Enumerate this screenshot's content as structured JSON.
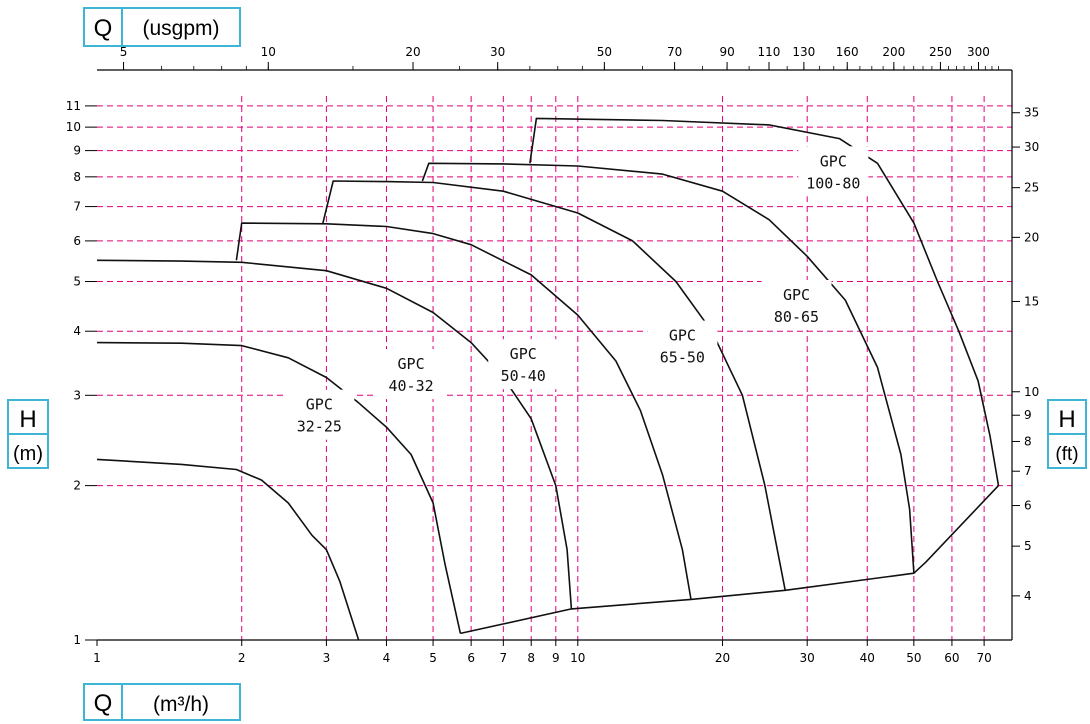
{
  "chart_data": {
    "type": "line",
    "x_scale": "log",
    "y_scale": "log",
    "xlim": [
      1,
      80
    ],
    "ylim": [
      1,
      11.5
    ],
    "grid": true,
    "grid_color": "#e0007a",
    "curve_color": "#111111",
    "box_color": "#3fb5d6",
    "x_ticks": [
      1,
      2,
      3,
      4,
      5,
      6,
      7,
      8,
      9,
      10,
      20,
      30,
      40,
      50,
      60,
      70
    ],
    "y_ticks": [
      1,
      2,
      3,
      4,
      5,
      6,
      7,
      8,
      9,
      10,
      11
    ],
    "top_axis": {
      "label_code": "Q",
      "unit": "(usgpm)",
      "ticks": [
        5,
        10,
        20,
        30,
        50,
        70,
        90,
        110,
        130,
        160,
        200,
        250,
        300
      ],
      "factor": 4.4029
    },
    "right_axis": {
      "label_code": "H",
      "unit": "(ft)",
      "ticks": [
        4,
        5,
        6,
        7,
        8,
        9,
        10,
        15,
        20,
        25,
        30,
        35
      ],
      "factor": 3.2808
    },
    "left_axis_label": {
      "code": "H",
      "unit": "(m)"
    },
    "bottom_axis_label": {
      "code": "Q",
      "unit": "(m³/h)"
    },
    "series": [
      {
        "name": "GPC 32-25",
        "label_lines": [
          "GPC",
          "32-25"
        ],
        "label_at": [
          2.9,
          2.75
        ],
        "points": [
          [
            1,
            2.25
          ],
          [
            1.5,
            2.2
          ],
          [
            1.95,
            2.15
          ],
          [
            2.2,
            2.05
          ],
          [
            2.5,
            1.85
          ],
          [
            2.8,
            1.6
          ],
          [
            3.0,
            1.5
          ],
          [
            3.2,
            1.3
          ],
          [
            3.5,
            1.0
          ]
        ]
      },
      {
        "name": "GPC 40-32",
        "label_lines": [
          "GPC",
          "40-32"
        ],
        "label_at": [
          4.5,
          3.3
        ],
        "points": [
          [
            1,
            3.8
          ],
          [
            1.5,
            3.79
          ],
          [
            2.0,
            3.75
          ],
          [
            2.5,
            3.55
          ],
          [
            3.0,
            3.25
          ],
          [
            3.5,
            2.9
          ],
          [
            4.0,
            2.6
          ],
          [
            4.5,
            2.3
          ],
          [
            5.0,
            1.85
          ],
          [
            5.3,
            1.4
          ],
          [
            5.7,
            1.03
          ]
        ]
      },
      {
        "name": "GPC 50-40",
        "label_lines": [
          "GPC",
          "50-40"
        ],
        "label_at": [
          7.7,
          3.45
        ],
        "points": [
          [
            1,
            5.5
          ],
          [
            1.5,
            5.48
          ],
          [
            2.0,
            5.45
          ],
          [
            3.0,
            5.25
          ],
          [
            4.0,
            4.85
          ],
          [
            5.0,
            4.35
          ],
          [
            6.0,
            3.8
          ],
          [
            7.0,
            3.25
          ],
          [
            8.0,
            2.7
          ],
          [
            9.0,
            2.0
          ],
          [
            9.5,
            1.5
          ],
          [
            9.7,
            1.15
          ]
        ]
      },
      {
        "name": "GPC 50-40 (upper)",
        "label_lines": [],
        "points": [
          [
            1.95,
            5.5
          ],
          [
            2.0,
            6.5
          ],
          [
            3.0,
            6.48
          ],
          [
            4.0,
            6.4
          ],
          [
            5.0,
            6.2
          ],
          [
            6.0,
            5.9
          ],
          [
            8.0,
            5.15
          ],
          [
            10.0,
            4.3
          ],
          [
            12.0,
            3.5
          ],
          [
            13.5,
            2.8
          ],
          [
            15.0,
            2.1
          ],
          [
            16.5,
            1.5
          ],
          [
            17.2,
            1.2
          ]
        ]
      },
      {
        "name": "GPC 65-50",
        "label_lines": [
          "GPC",
          "65-50"
        ],
        "label_at": [
          16.5,
          3.75
        ],
        "points": [
          [
            2.95,
            6.5
          ],
          [
            3.1,
            7.85
          ],
          [
            4.0,
            7.83
          ],
          [
            5.0,
            7.8
          ],
          [
            7.0,
            7.5
          ],
          [
            10.0,
            6.8
          ],
          [
            13.0,
            6.0
          ],
          [
            16.0,
            5.0
          ],
          [
            19.0,
            4.0
          ],
          [
            22.0,
            3.0
          ],
          [
            24.5,
            2.0
          ],
          [
            26.0,
            1.5
          ],
          [
            27.0,
            1.25
          ]
        ]
      },
      {
        "name": "GPC 80-65",
        "label_lines": [
          "GPC",
          "80-65"
        ],
        "label_at": [
          28.5,
          4.5
        ],
        "points": [
          [
            4.75,
            7.85
          ],
          [
            4.9,
            8.5
          ],
          [
            7.0,
            8.48
          ],
          [
            10.0,
            8.4
          ],
          [
            15.0,
            8.1
          ],
          [
            20.0,
            7.5
          ],
          [
            25.0,
            6.6
          ],
          [
            30.0,
            5.6
          ],
          [
            36.0,
            4.6
          ],
          [
            42.0,
            3.4
          ],
          [
            47.0,
            2.3
          ],
          [
            49.0,
            1.8
          ],
          [
            50.0,
            1.35
          ]
        ]
      },
      {
        "name": "GPC 100-80",
        "label_lines": [
          "GPC",
          "100-80"
        ],
        "label_at": [
          34,
          8.2
        ],
        "points": [
          [
            7.95,
            8.5
          ],
          [
            8.2,
            10.4
          ],
          [
            15.0,
            10.3
          ],
          [
            25.0,
            10.1
          ],
          [
            35.0,
            9.5
          ],
          [
            42.0,
            8.5
          ],
          [
            50.0,
            6.5
          ],
          [
            56.0,
            5.0
          ],
          [
            62.0,
            4.0
          ],
          [
            68.0,
            3.2
          ],
          [
            72.0,
            2.5
          ],
          [
            75.0,
            2.0
          ]
        ]
      },
      {
        "name": "limit line",
        "label_lines": [],
        "points": [
          [
            5.7,
            1.03
          ],
          [
            9.7,
            1.15
          ],
          [
            17.2,
            1.2
          ],
          [
            27.0,
            1.25
          ],
          [
            50.0,
            1.35
          ],
          [
            53.0,
            1.42
          ],
          [
            75.0,
            2.0
          ]
        ]
      }
    ]
  }
}
